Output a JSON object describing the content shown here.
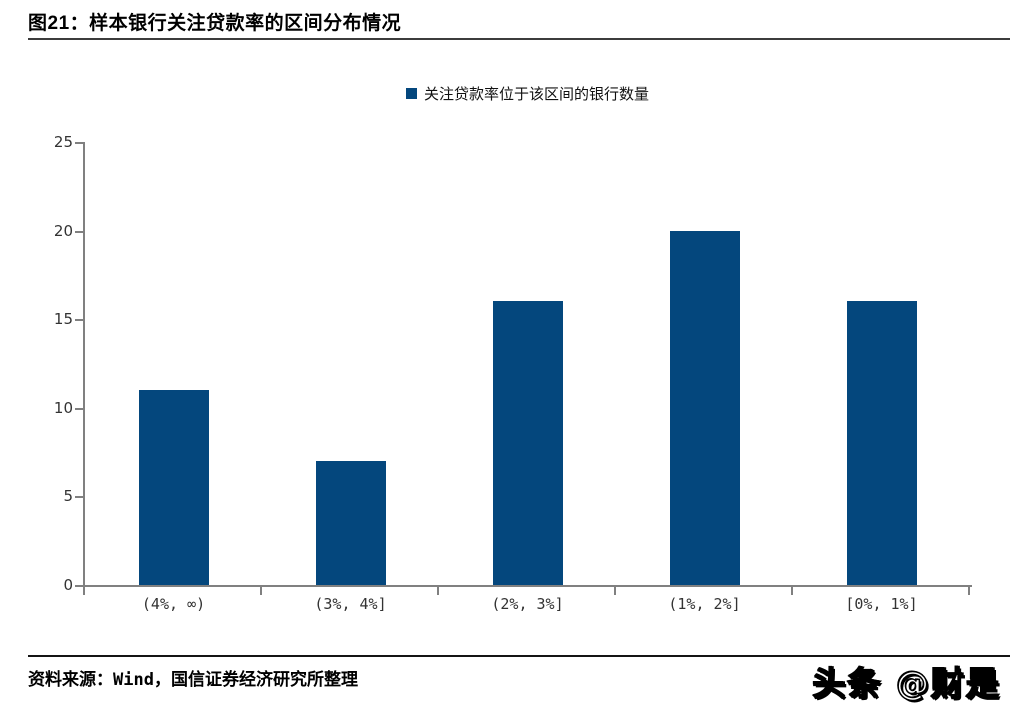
{
  "header": {
    "title": "图21：样本银行关注贷款率的区间分布情况"
  },
  "legend": {
    "label": "关注贷款率位于该区间的银行数量",
    "marker_color": "#04477d"
  },
  "chart_data": {
    "type": "bar",
    "title": "样本银行关注贷款率的区间分布情况",
    "series_name": "关注贷款率位于该区间的银行数量",
    "categories": [
      "(4%, ∞)",
      "(3%, 4%]",
      "(2%, 3%]",
      "(1%, 2%]",
      "[0%, 1%]"
    ],
    "values": [
      11,
      7,
      16,
      20,
      16
    ],
    "xlabel": "",
    "ylabel": "",
    "ylim": [
      0,
      25
    ],
    "yticks": [
      0,
      5,
      10,
      15,
      20,
      25
    ],
    "grid": false,
    "legend_position": "top-center",
    "bar_color": "#04477d",
    "axis_color": "#808080"
  },
  "footer": {
    "source": "资料来源：Wind，国信证券经济研究所整理",
    "watermark": "头条 @财是"
  }
}
